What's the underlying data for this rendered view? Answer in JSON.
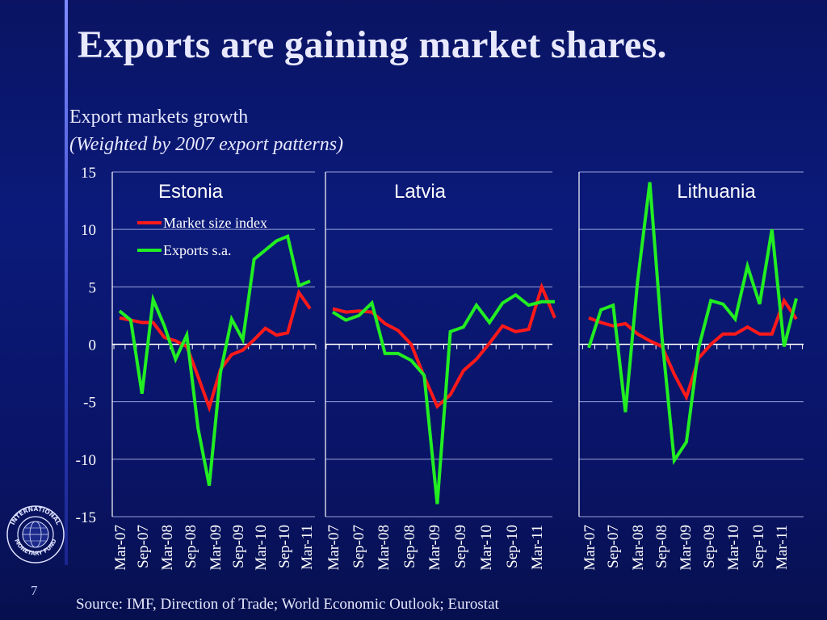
{
  "title": "Exports are gaining market shares.",
  "subtitle": "Export markets growth",
  "subnote": "(Weighted by 2007 export patterns)",
  "source": "Source: IMF, Direction of Trade; World Economic Outlook; Eurostat",
  "page_number": "7",
  "logo": {
    "icon": "imf-seal-icon",
    "text_top": "INTERNATIONAL",
    "text_bottom": "MONETARY FUND"
  },
  "colors": {
    "market_size": "#ff1a1a",
    "exports": "#22ee22",
    "grid": "#9aa3d8",
    "axis": "#ffffff"
  },
  "chart_data": {
    "type": "line",
    "ylim": [
      -15,
      15
    ],
    "yticks": [
      15,
      10,
      5,
      0,
      -5,
      -10,
      -15
    ],
    "grid": true,
    "legend_placement": "top-left",
    "x_tick_labels": [
      "Mar-07",
      "Sep-07",
      "Mar-08",
      "Sep-08",
      "Mar-09",
      "Sep-09",
      "Mar-10",
      "Sep-10",
      "Mar-11"
    ],
    "panels": [
      {
        "name": "Estonia",
        "x": [
          "2007Q1",
          "2007Q2",
          "2007Q3",
          "2007Q4",
          "2008Q1",
          "2008Q2",
          "2008Q3",
          "2008Q4",
          "2009Q1",
          "2009Q2",
          "2009Q3",
          "2009Q4",
          "2010Q1",
          "2010Q2",
          "2010Q3",
          "2010Q4",
          "2011Q1",
          "2011Q2"
        ],
        "series": [
          {
            "name": "Market size index",
            "values": [
              2.3,
              2.1,
              1.9,
              1.9,
              0.6,
              0.3,
              -0.2,
              -2.8,
              -5.5,
              -2.2,
              -0.9,
              -0.5,
              0.4,
              1.4,
              0.8,
              1.0,
              4.5,
              3.1
            ]
          },
          {
            "name": "Exports s.a.",
            "values": [
              2.9,
              2.1,
              -4.3,
              3.9,
              1.6,
              -1.3,
              0.8,
              -7.3,
              -12.3,
              -2.5,
              2.2,
              0.4,
              7.4,
              8.2,
              9.0,
              9.4,
              5.1,
              5.5
            ]
          }
        ]
      },
      {
        "name": "Latvia",
        "x": [
          "2007Q1",
          "2007Q2",
          "2007Q3",
          "2007Q4",
          "2008Q1",
          "2008Q2",
          "2008Q3",
          "2008Q4",
          "2009Q1",
          "2009Q2",
          "2009Q3",
          "2009Q4",
          "2010Q1",
          "2010Q2",
          "2010Q3",
          "2010Q4",
          "2011Q1",
          "2011Q2"
        ],
        "series": [
          {
            "name": "Market size index",
            "values": [
              3.1,
              2.8,
              2.9,
              2.8,
              1.8,
              1.2,
              0,
              -2.8,
              -5.4,
              -4.4,
              -2.3,
              -1.3,
              0.1,
              1.6,
              1.1,
              1.3,
              5.0,
              2.3
            ]
          },
          {
            "name": "Exports s.a.",
            "values": [
              2.8,
              2.1,
              2.5,
              3.6,
              -0.8,
              -0.8,
              -1.4,
              -2.7,
              -13.9,
              1.1,
              1.5,
              3.4,
              1.9,
              3.6,
              4.3,
              3.4,
              3.7,
              3.7
            ]
          }
        ]
      },
      {
        "name": "Lithuania",
        "x": [
          "2007Q1",
          "2007Q2",
          "2007Q3",
          "2007Q4",
          "2008Q1",
          "2008Q2",
          "2008Q3",
          "2008Q4",
          "2009Q1",
          "2009Q2",
          "2009Q3",
          "2009Q4",
          "2010Q1",
          "2010Q2",
          "2010Q3",
          "2010Q4",
          "2011Q1",
          "2011Q2"
        ],
        "series": [
          {
            "name": "Market size index",
            "values": [
              2.3,
              1.9,
              1.6,
              1.8,
              0.9,
              0.3,
              -0.2,
              -2.6,
              -4.6,
              -1.2,
              0,
              0.9,
              0.9,
              1.5,
              0.9,
              0.9,
              3.8,
              2.2
            ]
          },
          {
            "name": "Exports s.a.",
            "values": [
              -0.3,
              3.0,
              3.4,
              -5.9,
              5.5,
              14.1,
              0.6,
              -10.1,
              -8.5,
              -0.3,
              3.8,
              3.5,
              2.2,
              6.8,
              3.5,
              10.0,
              -0.2,
              4.0
            ]
          }
        ]
      }
    ]
  }
}
